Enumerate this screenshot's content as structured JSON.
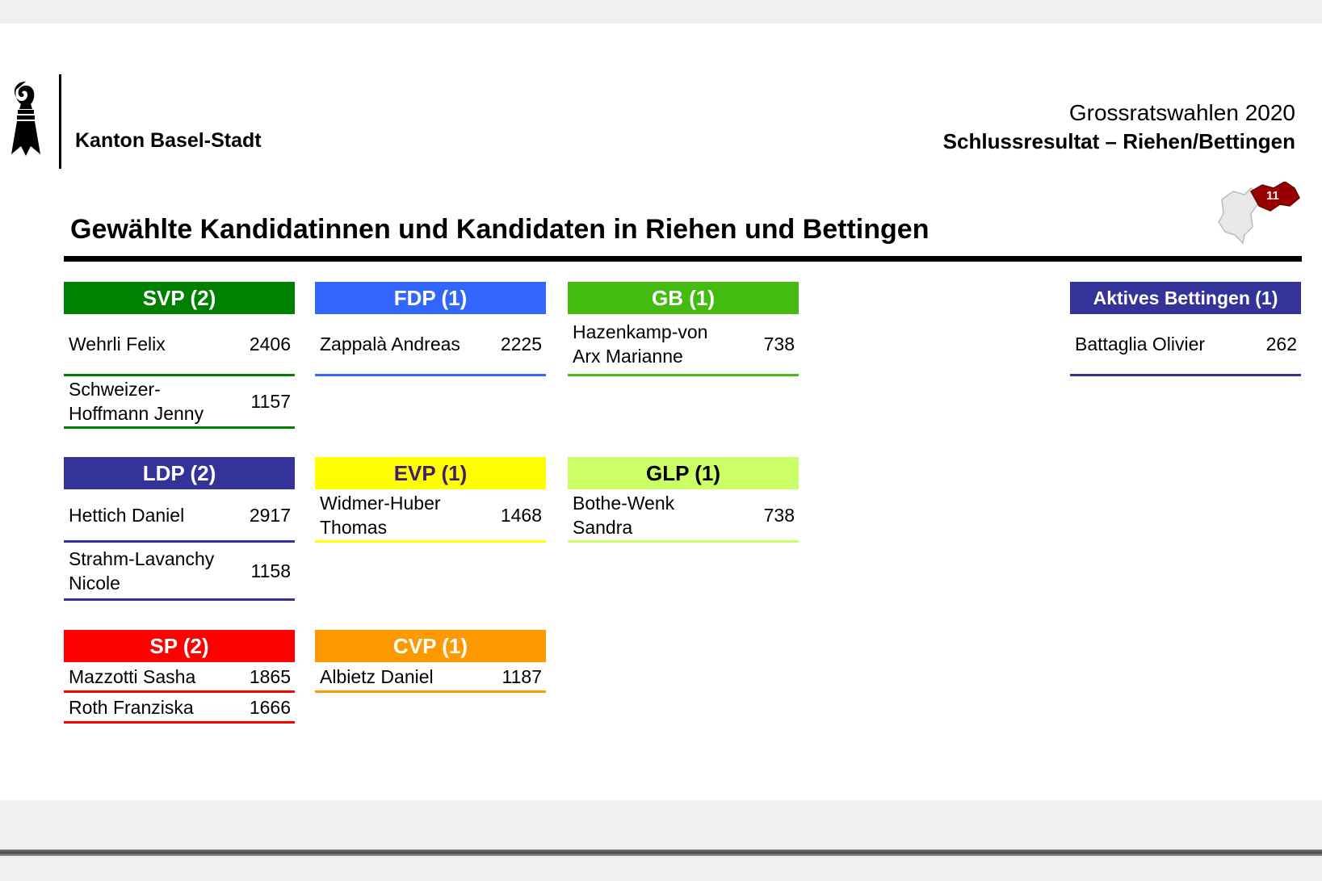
{
  "header": {
    "organization": "Kanton Basel-Stadt",
    "election": "Grossratswahlen 2020",
    "subtitle": "Schlussresultat – Riehen/Bettingen",
    "map_label": "11"
  },
  "title": "Gewählte Kandidatinnen und Kandidaten in Riehen und Bettingen",
  "parties": [
    {
      "id": "svp",
      "label": "SVP (2)",
      "color": "#008000",
      "text_color": "#ffffff",
      "candidates": [
        {
          "name": "Wehrli Felix",
          "votes": "2406"
        },
        {
          "name": "Schweizer-\nHoffmann Jenny",
          "votes": "1157"
        }
      ]
    },
    {
      "id": "fdp",
      "label": "FDP (1)",
      "color": "#3366ff",
      "text_color": "#ffffff",
      "candidates": [
        {
          "name": "Zappalà Andreas",
          "votes": "2225"
        }
      ]
    },
    {
      "id": "gb",
      "label": "GB (1)",
      "color": "#44bb11",
      "text_color": "#ffffff",
      "candidates": [
        {
          "name": "Hazenkamp-von\nArx Marianne",
          "votes": "738"
        }
      ]
    },
    {
      "id": "aktives-bettingen",
      "label": "Aktives Bettingen (1)",
      "color": "#333399",
      "text_color": "#ffffff",
      "candidates": [
        {
          "name": "Battaglia Olivier",
          "votes": "262"
        }
      ]
    },
    {
      "id": "ldp",
      "label": "LDP (2)",
      "color": "#333399",
      "text_color": "#ffffff",
      "candidates": [
        {
          "name": "Hettich Daniel",
          "votes": "2917"
        },
        {
          "name": "Strahm-Lavanchy\nNicole",
          "votes": "1158"
        }
      ]
    },
    {
      "id": "evp",
      "label": "EVP (1)",
      "color": "#ffff00",
      "text_color": "#3f1f70",
      "candidates": [
        {
          "name": "Widmer-Huber\nThomas",
          "votes": "1468"
        }
      ]
    },
    {
      "id": "glp",
      "label": "GLP (1)",
      "color": "#ccff66",
      "text_color": "#000000",
      "candidates": [
        {
          "name": "Bothe-Wenk\nSandra",
          "votes": "738"
        }
      ]
    },
    {
      "id": "sp",
      "label": "SP (2)",
      "color": "#ff0000",
      "text_color": "#ffffff",
      "candidates": [
        {
          "name": "Mazzotti Sasha",
          "votes": "1865"
        },
        {
          "name": "Roth Franziska",
          "votes": "1666"
        }
      ]
    },
    {
      "id": "cvp",
      "label": "CVP (1)",
      "color": "#ff9900",
      "text_color": "#ffffff",
      "candidates": [
        {
          "name": "Albietz Daniel",
          "votes": "1187"
        }
      ]
    }
  ]
}
